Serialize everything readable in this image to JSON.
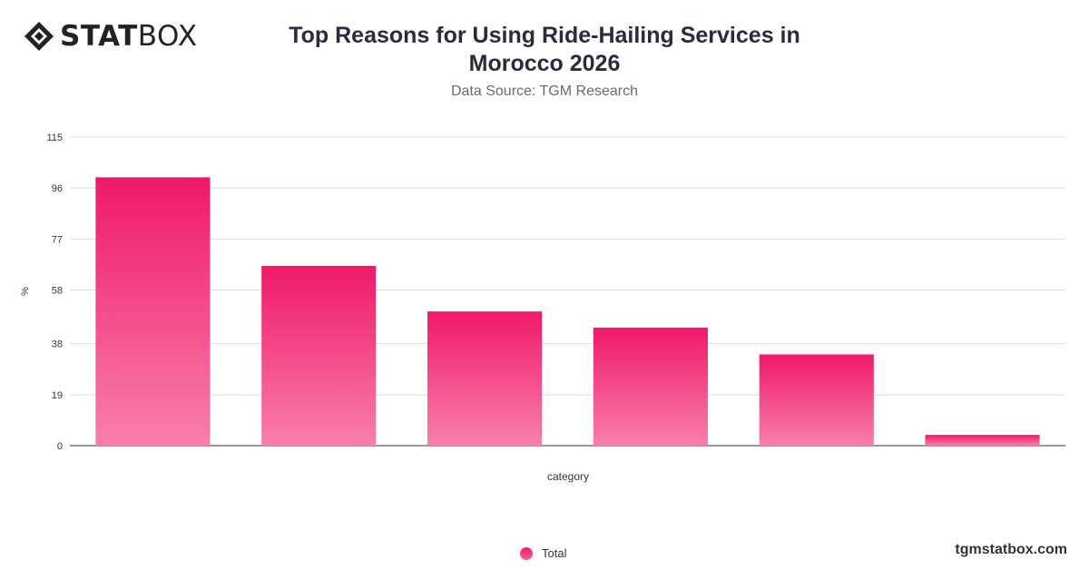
{
  "header": {
    "logo_bold": "STAT",
    "logo_regular": "BOX",
    "logo_icon": "diamond-logo-icon"
  },
  "chart_data": {
    "type": "bar",
    "title": "Top Reasons for Using Ride-Hailing Services in Morocco 2026",
    "subtitle": "Data Source: TGM Research",
    "categories": [
      "",
      "",
      "",
      "",
      "",
      ""
    ],
    "series": [
      {
        "name": "Total",
        "values": [
          100,
          67,
          50,
          44,
          34,
          4
        ]
      }
    ],
    "xlabel": "category",
    "ylabel": "%",
    "yticks": [
      0,
      19,
      38,
      58,
      77,
      96,
      115
    ],
    "ylim": [
      0,
      115
    ],
    "grid": true,
    "legend_position": "bottom-center",
    "colors": {
      "bar_top": "#f0196a",
      "bar_bottom": "#f87fab",
      "grid": "#dddddd",
      "axis": "#333333"
    }
  },
  "footer": {
    "brand": "tgmstatbox.com"
  }
}
